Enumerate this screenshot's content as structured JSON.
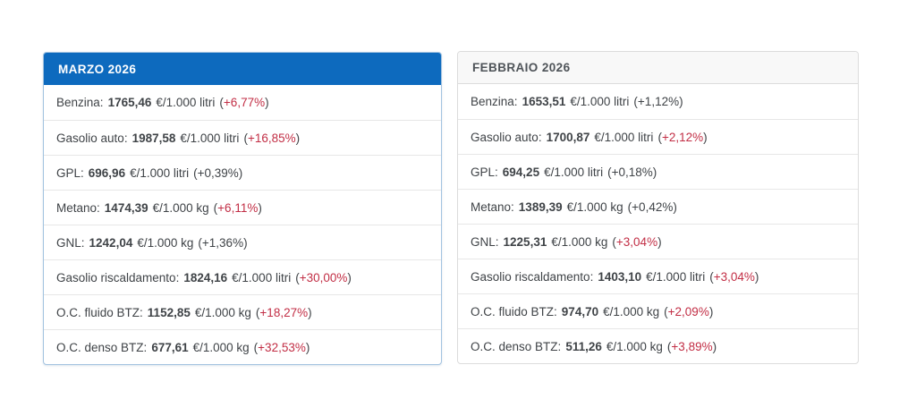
{
  "colors": {
    "primary": "#0d6abe",
    "highlight": "#c22e45",
    "text": "#3f4347"
  },
  "cards": [
    {
      "title": "MARZO 2026",
      "active": true,
      "rows": [
        {
          "label": "Benzina",
          "value": "1765,46",
          "unit": "€/1.000 litri",
          "change": "+6,77%",
          "highlight": true
        },
        {
          "label": "Gasolio auto",
          "value": "1987,58",
          "unit": "€/1.000 litri",
          "change": "+16,85%",
          "highlight": true
        },
        {
          "label": "GPL",
          "value": "696,96",
          "unit": "€/1.000 litri",
          "change": "+0,39%",
          "highlight": false
        },
        {
          "label": "Metano",
          "value": "1474,39",
          "unit": "€/1.000 kg",
          "change": "+6,11%",
          "highlight": true
        },
        {
          "label": "GNL",
          "value": "1242,04",
          "unit": "€/1.000 kg",
          "change": "+1,36%",
          "highlight": false
        },
        {
          "label": "Gasolio riscaldamento",
          "value": "1824,16",
          "unit": "€/1.000 litri",
          "change": "+30,00%",
          "highlight": true
        },
        {
          "label": "O.C. fluido BTZ",
          "value": "1152,85",
          "unit": "€/1.000 kg",
          "change": "+18,27%",
          "highlight": true
        },
        {
          "label": "O.C. denso BTZ",
          "value": "677,61",
          "unit": "€/1.000 kg",
          "change": "+32,53%",
          "highlight": true
        }
      ]
    },
    {
      "title": "FEBBRAIO 2026",
      "active": false,
      "rows": [
        {
          "label": "Benzina",
          "value": "1653,51",
          "unit": "€/1.000 litri",
          "change": "+1,12%",
          "highlight": false
        },
        {
          "label": "Gasolio auto",
          "value": "1700,87",
          "unit": "€/1.000 litri",
          "change": "+2,12%",
          "highlight": true
        },
        {
          "label": "GPL",
          "value": "694,25",
          "unit": "€/1.000 litri",
          "change": "+0,18%",
          "highlight": false
        },
        {
          "label": "Metano",
          "value": "1389,39",
          "unit": "€/1.000 kg",
          "change": "+0,42%",
          "highlight": false
        },
        {
          "label": "GNL",
          "value": "1225,31",
          "unit": "€/1.000 kg",
          "change": "+3,04%",
          "highlight": true
        },
        {
          "label": "Gasolio riscaldamento",
          "value": "1403,10",
          "unit": "€/1.000 litri",
          "change": "+3,04%",
          "highlight": true
        },
        {
          "label": "O.C. fluido BTZ",
          "value": "974,70",
          "unit": "€/1.000 kg",
          "change": "+2,09%",
          "highlight": true
        },
        {
          "label": "O.C. denso BTZ",
          "value": "511,26",
          "unit": "€/1.000 kg",
          "change": "+3,89%",
          "highlight": true
        }
      ]
    }
  ]
}
